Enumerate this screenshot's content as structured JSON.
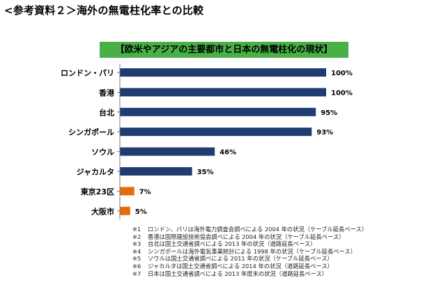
{
  "heading": "<参考資料２＞海外の無電柱化率との比較",
  "chart_data": {
    "type": "bar",
    "orientation": "horizontal",
    "title": "【欧米やアジアの主要都市と日本の無電柱化の現状】",
    "categories": [
      "ロンドン・パリ",
      "香港",
      "台北",
      "シンガポール",
      "ソウル",
      "ジャカルタ",
      "東京23区",
      "大阪市"
    ],
    "values": [
      100,
      100,
      95,
      93,
      46,
      35,
      7,
      5
    ],
    "value_labels": [
      "100%",
      "100%",
      "95%",
      "93%",
      "46%",
      "35%",
      "7%",
      "5%"
    ],
    "bar_colors": [
      "#1f3c73",
      "#1f3c73",
      "#1f3c73",
      "#1f3c73",
      "#1f3c73",
      "#1f3c73",
      "#e46c0a",
      "#e46c0a"
    ],
    "xlim": [
      0,
      100
    ],
    "grid": false,
    "legend": "none"
  },
  "notes": [
    {
      "mark": "※1",
      "text": "ロンドン、パリは海外電力調査会調べによる 2004 年の状況（ケーブル延長ベース）"
    },
    {
      "mark": "※2",
      "text": "香港は国際建設技術協会調べによる 2004 年の状況（ケーブル延長ベース）"
    },
    {
      "mark": "※3",
      "text": "台北は国土交通省調べによる 2013 年の状況（道路延長ベース）"
    },
    {
      "mark": "※4",
      "text": "シンガポールは海外電気事業統計による 1998 年の状況（ケーブル延長ベース）"
    },
    {
      "mark": "※5",
      "text": "ソウルは国土交通省調べによる 2011 年の状況（ケーブル延長ベース）"
    },
    {
      "mark": "※6",
      "text": "ジャカルタは国土交通省調べによる 2014 年の状況（道路延長ベース）"
    },
    {
      "mark": "※7",
      "text": "日本は国土交通省調べによる 2013 年度末の状況（道路延長ベース）"
    }
  ]
}
